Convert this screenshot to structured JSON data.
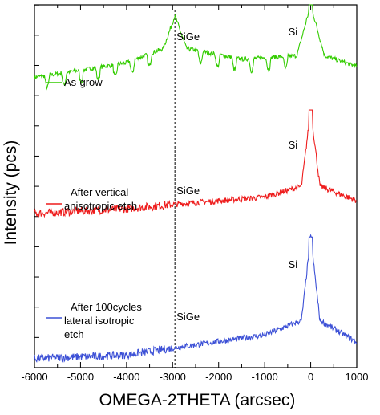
{
  "chart_data": {
    "type": "line",
    "xlabel": "OMEGA-2THETA (arcsec)",
    "ylabel": "Intensity (pcs)",
    "xlim": [
      -6000,
      1000
    ],
    "x_ticks": [
      "-6000",
      "-5000",
      "-4000",
      "-3000",
      "-2000",
      "-1000",
      "0",
      "1000"
    ],
    "reference_line_x": -2950,
    "grid": false,
    "series": [
      {
        "name": "As-grow",
        "color": "#33cc00",
        "legend_lines": [
          "As-grow"
        ],
        "peak_label": "Si",
        "layer_label": "SiGe",
        "baseline_y": 0.82,
        "sige_peak_x": -2950,
        "fringe_period": 370,
        "points": [
          [
            -6000,
            0.8
          ],
          [
            -4000,
            0.84
          ],
          [
            -3200,
            0.88
          ],
          [
            -2950,
            0.97
          ],
          [
            -2700,
            0.88
          ],
          [
            -1500,
            0.85
          ],
          [
            -300,
            0.86
          ],
          [
            0,
            1.0
          ],
          [
            300,
            0.86
          ],
          [
            1000,
            0.83
          ]
        ]
      },
      {
        "name": "After vertical anisotropic etch",
        "color": "#ee1c1c",
        "legend_lines": [
          "After vertical",
          "anisotropic etch"
        ],
        "peak_label": "Si",
        "layer_label": "SiGe",
        "baseline_y": 0.44,
        "points": [
          [
            -6000,
            0.425
          ],
          [
            -4000,
            0.438
          ],
          [
            -2950,
            0.45
          ],
          [
            -1000,
            0.47
          ],
          [
            -200,
            0.5
          ],
          [
            0,
            0.71
          ],
          [
            200,
            0.5
          ],
          [
            1000,
            0.46
          ]
        ]
      },
      {
        "name": "After 100cycles lateral isotropic etch",
        "color": "#3c50d6",
        "legend_lines": [
          "After 100cycles",
          "lateral isotropic",
          "etch"
        ],
        "peak_label": "Si",
        "layer_label": "SiGe",
        "baseline_y": 0.04,
        "points": [
          [
            -6000,
            0.025
          ],
          [
            -4000,
            0.035
          ],
          [
            -2950,
            0.055
          ],
          [
            -1000,
            0.09
          ],
          [
            -200,
            0.13
          ],
          [
            0,
            0.36
          ],
          [
            200,
            0.13
          ],
          [
            1000,
            0.07
          ]
        ]
      }
    ]
  }
}
